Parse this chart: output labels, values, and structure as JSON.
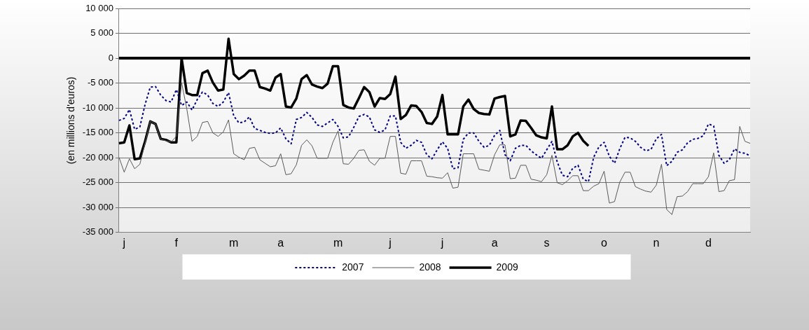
{
  "chart_data": {
    "type": "line",
    "ylabel": "(en millions d'euros)",
    "categories": [
      null,
      "j",
      null,
      null,
      null,
      null,
      null,
      null,
      null,
      null,
      null,
      "f",
      null,
      null,
      null,
      null,
      null,
      null,
      null,
      null,
      null,
      null,
      "m",
      null,
      null,
      null,
      null,
      null,
      null,
      null,
      null,
      "a",
      null,
      null,
      null,
      null,
      null,
      null,
      null,
      null,
      null,
      null,
      "m",
      null,
      null,
      null,
      null,
      null,
      null,
      null,
      null,
      null,
      "j",
      null,
      null,
      null,
      null,
      null,
      null,
      null,
      null,
      null,
      "j",
      null,
      null,
      null,
      null,
      null,
      null,
      null,
      null,
      null,
      "a",
      null,
      null,
      null,
      null,
      null,
      null,
      null,
      null,
      null,
      "s",
      null,
      null,
      null,
      null,
      null,
      null,
      null,
      null,
      null,
      null,
      "o",
      null,
      null,
      null,
      null,
      null,
      null,
      null,
      null,
      null,
      "n",
      null,
      null,
      null,
      null,
      null,
      null,
      null,
      null,
      null,
      "d",
      null,
      null,
      null,
      null,
      null,
      null,
      null,
      null
    ],
    "ylim": [
      -35000,
      10000
    ],
    "yticks": [
      {
        "value": -35000,
        "label": "-35 000"
      },
      {
        "value": -30000,
        "label": "-30 000"
      },
      {
        "value": -25000,
        "label": "-25 000"
      },
      {
        "value": -20000,
        "label": "-20 000"
      },
      {
        "value": -15000,
        "label": "-15 000"
      },
      {
        "value": -10000,
        "label": "-10 000"
      },
      {
        "value": -5000,
        "label": "-5 000"
      },
      0,
      {
        "value": 5000,
        "label": "5 000"
      },
      {
        "value": 10000,
        "label": "10 000"
      }
    ],
    "grid": "y",
    "legend": "bottom",
    "marker": "none",
    "ref_lines": [
      {
        "axis": "y",
        "value": 0,
        "color": "#000000"
      }
    ],
    "series": [
      {
        "name": "2007",
        "color": "#000080",
        "line_style": "dotted",
        "values": [
          -12500,
          -12100,
          -10300,
          -14300,
          -13800,
          -9300,
          -5800,
          -5700,
          -7400,
          -8500,
          -8800,
          -6300,
          -9500,
          -8800,
          -10400,
          -8300,
          -6800,
          -7400,
          -9100,
          -9700,
          -8800,
          -6900,
          -11600,
          -13000,
          -12800,
          -11800,
          -14100,
          -14500,
          -14900,
          -15100,
          -15000,
          -14000,
          -16200,
          -17200,
          -12300,
          -11900,
          -10900,
          -11900,
          -13400,
          -13700,
          -13000,
          -12300,
          -13700,
          -16000,
          -15800,
          -13900,
          -11700,
          -11300,
          -11800,
          -14400,
          -14900,
          -14400,
          -11600,
          -11600,
          -16900,
          -18100,
          -17500,
          -16500,
          -16900,
          -19400,
          -20200,
          -18400,
          -16800,
          -18100,
          -22200,
          -22000,
          -16300,
          -15000,
          -15000,
          -16700,
          -17900,
          -17500,
          -15500,
          -14500,
          -19400,
          -20600,
          -18100,
          -17500,
          -17500,
          -18600,
          -19400,
          -20100,
          -18400,
          -16700,
          -20800,
          -23500,
          -23800,
          -22100,
          -21500,
          -24300,
          -24800,
          -19900,
          -17800,
          -16900,
          -19700,
          -21100,
          -18200,
          -15900,
          -16000,
          -16700,
          -17900,
          -18600,
          -18300,
          -16200,
          -15300,
          -21600,
          -20700,
          -18900,
          -18400,
          -17000,
          -16300,
          -16100,
          -15600,
          -13200,
          -13600,
          -19500,
          -21100,
          -20400,
          -18200,
          -18900,
          -19100,
          -19600
        ]
      },
      {
        "name": "2008",
        "color": "#595959",
        "line_style": "solid",
        "values": [
          -19900,
          -22900,
          -20200,
          -22200,
          -21300,
          -17100,
          -12700,
          -13200,
          -16300,
          -16600,
          -16800,
          -15700,
          -4900,
          -10200,
          -16700,
          -15700,
          -12900,
          -12700,
          -15000,
          -15700,
          -14800,
          -12400,
          -19200,
          -19900,
          -20400,
          -18100,
          -17900,
          -20400,
          -21100,
          -21800,
          -21600,
          -19200,
          -23400,
          -23200,
          -21400,
          -17500,
          -16400,
          -17600,
          -20100,
          -20100,
          -20100,
          -16900,
          -14600,
          -21200,
          -21300,
          -20100,
          -18500,
          -18400,
          -20700,
          -21500,
          -20100,
          -20100,
          -15700,
          -15700,
          -23100,
          -23300,
          -20600,
          -20600,
          -20600,
          -23700,
          -23800,
          -24000,
          -24100,
          -23000,
          -26100,
          -25900,
          -19200,
          -19200,
          -19200,
          -22300,
          -22500,
          -22700,
          -19400,
          -17400,
          -17400,
          -24200,
          -24100,
          -21500,
          -21500,
          -24300,
          -24500,
          -24800,
          -23400,
          -19500,
          -25000,
          -25400,
          -24600,
          -23600,
          -23600,
          -26600,
          -26600,
          -25700,
          -25200,
          -22700,
          -29100,
          -28800,
          -24900,
          -22900,
          -22900,
          -25800,
          -26300,
          -26700,
          -26900,
          -25500,
          -21300,
          -30400,
          -31400,
          -27800,
          -27700,
          -26800,
          -25200,
          -25200,
          -25200,
          -23800,
          -19000,
          -26800,
          -26600,
          -24600,
          -24400,
          -13700,
          -16700,
          -17100
        ]
      },
      {
        "name": "2009",
        "color": "#000000",
        "line_style": "solid",
        "values": [
          -17100,
          -16900,
          -13500,
          -20300,
          -20100,
          -16700,
          -12700,
          -13200,
          -16200,
          -16400,
          -16900,
          -16900,
          0,
          -7000,
          -7400,
          -7400,
          -3000,
          -2500,
          -4900,
          -6500,
          -6300,
          3900,
          -3200,
          -4200,
          -3500,
          -2500,
          -2500,
          -5800,
          -6100,
          -6500,
          -3900,
          -3200,
          -9700,
          -9900,
          -8100,
          -4200,
          -3400,
          -5300,
          -5700,
          -6000,
          -5100,
          -1600,
          -1600,
          -9400,
          -9900,
          -10100,
          -8000,
          -5800,
          -6800,
          -9700,
          -8000,
          -8200,
          -7200,
          -3700,
          -12200,
          -11400,
          -9500,
          -9600,
          -10800,
          -13000,
          -13200,
          -11700,
          -7400,
          -15300,
          -15300,
          -15300,
          -9700,
          -8300,
          -10200,
          -11000,
          -11200,
          -11300,
          -8100,
          -7800,
          -7600,
          -15700,
          -15300,
          -12500,
          -12600,
          -14000,
          -15500,
          -15900,
          -16100,
          -9700,
          -18300,
          -18300,
          -17500,
          -15700,
          -15000,
          -16600,
          -17600,
          null,
          null,
          null,
          null,
          null,
          null,
          null,
          null,
          null,
          null,
          null,
          null,
          null,
          null,
          null,
          null,
          null,
          null,
          null,
          null,
          null,
          null,
          null,
          null,
          null,
          null,
          null,
          null,
          null,
          null,
          null
        ]
      }
    ]
  }
}
